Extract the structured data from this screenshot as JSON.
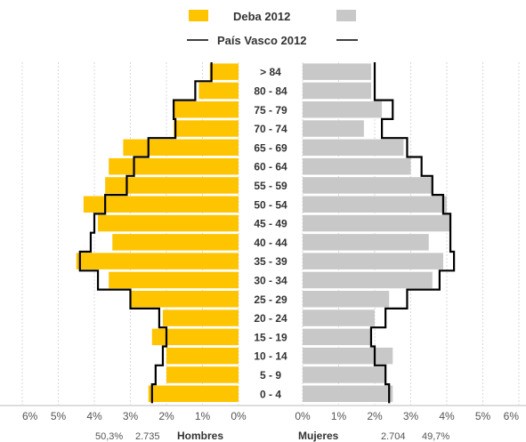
{
  "chart_data": {
    "type": "bar",
    "orientation": "horizontal-pyramid",
    "legend": {
      "bar_series": "Deba 2012",
      "line_series": "País Vasco 2012"
    },
    "colors": {
      "hombres": "#FFC400",
      "mujeres": "#C8C8C8",
      "line": "#000000",
      "grid": "#D9D9D9"
    },
    "categories": [
      "> 84",
      "80 - 84",
      "75 - 79",
      "70 - 74",
      "65 - 69",
      "60 - 64",
      "55 - 59",
      "50 - 54",
      "45 - 49",
      "40 - 44",
      "35 - 39",
      "30 - 34",
      "25 - 29",
      "20 - 24",
      "15 - 19",
      "10 - 14",
      "5 - 9",
      "0 - 4"
    ],
    "series": [
      {
        "name": "Deba 2012",
        "sex": "Hombres",
        "values": [
          0.8,
          1.1,
          1.8,
          1.8,
          3.2,
          3.6,
          3.7,
          4.3,
          3.9,
          3.5,
          4.5,
          3.6,
          3.0,
          2.1,
          2.4,
          2.0,
          2.0,
          2.5
        ]
      },
      {
        "name": "Deba 2012",
        "sex": "Mujeres",
        "values": [
          1.9,
          1.9,
          2.2,
          1.7,
          2.8,
          3.0,
          3.6,
          4.0,
          4.1,
          3.5,
          3.9,
          3.6,
          2.4,
          2.0,
          1.9,
          2.5,
          2.3,
          2.5
        ]
      },
      {
        "name": "País Vasco 2012",
        "sex": "Hombres",
        "values": [
          0.75,
          1.2,
          1.8,
          1.75,
          2.5,
          2.9,
          3.1,
          3.7,
          4.0,
          4.1,
          4.4,
          3.9,
          3.0,
          2.2,
          2.0,
          2.1,
          2.3,
          2.4
        ]
      },
      {
        "name": "País Vasco 2012",
        "sex": "Mujeres",
        "values": [
          2.0,
          2.0,
          2.5,
          2.2,
          2.9,
          3.3,
          3.6,
          3.9,
          4.1,
          4.1,
          4.2,
          3.8,
          2.9,
          2.3,
          1.9,
          2.0,
          2.3,
          2.4
        ]
      }
    ],
    "xlim": [
      -6,
      6
    ],
    "x_ticks": [
      "6%",
      "5%",
      "4%",
      "3%",
      "2%",
      "1%",
      "0%",
      "0%",
      "1%",
      "2%",
      "3%",
      "4%",
      "5%",
      "6%"
    ],
    "grid": true,
    "legend_position": "top-center",
    "footer": {
      "hombres_pct": "50,3%",
      "hombres_count": "2.735",
      "hombres_label": "Hombres",
      "mujeres_label": "Mujeres",
      "mujeres_count": "2.704",
      "mujeres_pct": "49,7%"
    }
  }
}
